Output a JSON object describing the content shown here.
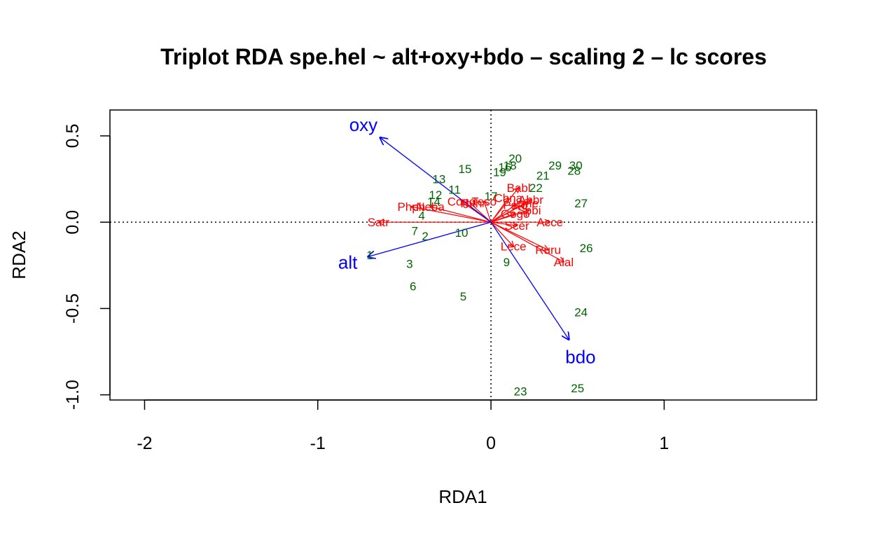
{
  "chart_data": {
    "type": "scatter",
    "title": "Triplot RDA spe.hel ~ alt+oxy+bdo – scaling 2 – lc scores",
    "xlabel": "RDA1",
    "ylabel": "RDA2",
    "xlim": [
      -2.2,
      1.88
    ],
    "ylim": [
      -1.03,
      0.65
    ],
    "xticks": [
      "-2",
      "-1",
      "0",
      "1"
    ],
    "xtick_values": [
      -2,
      -1,
      0,
      1
    ],
    "yticks": [
      "-1.0",
      "-0.5",
      "0.0",
      "0.5"
    ],
    "ytick_values": [
      -1.0,
      -0.5,
      0.0,
      0.5
    ],
    "reference_lines": {
      "x": 0,
      "y": 0,
      "style": "dotted"
    },
    "colors": {
      "sites": "#006400",
      "species": "#ff0000",
      "env": "#0000ff"
    },
    "sites": [
      {
        "label": "1",
        "x": -0.7,
        "y": -0.19
      },
      {
        "label": "2",
        "x": -0.38,
        "y": -0.08
      },
      {
        "label": "3",
        "x": -0.47,
        "y": -0.24
      },
      {
        "label": "4",
        "x": -0.4,
        "y": 0.04
      },
      {
        "label": "5",
        "x": -0.16,
        "y": -0.43
      },
      {
        "label": "6",
        "x": -0.45,
        "y": -0.37
      },
      {
        "label": "7",
        "x": -0.44,
        "y": -0.05
      },
      {
        "label": "9",
        "x": 0.09,
        "y": -0.23
      },
      {
        "label": "10",
        "x": -0.17,
        "y": -0.06
      },
      {
        "label": "11",
        "x": -0.21,
        "y": 0.19
      },
      {
        "label": "12",
        "x": -0.32,
        "y": 0.16
      },
      {
        "label": "13",
        "x": -0.3,
        "y": 0.25
      },
      {
        "label": "14",
        "x": -0.33,
        "y": 0.12
      },
      {
        "label": "15",
        "x": -0.15,
        "y": 0.31
      },
      {
        "label": "16",
        "x": 0.08,
        "y": 0.32
      },
      {
        "label": "17",
        "x": 0.0,
        "y": 0.15
      },
      {
        "label": "18",
        "x": 0.11,
        "y": 0.33
      },
      {
        "label": "19",
        "x": 0.05,
        "y": 0.29
      },
      {
        "label": "20",
        "x": 0.14,
        "y": 0.37
      },
      {
        "label": "21",
        "x": 0.3,
        "y": 0.27
      },
      {
        "label": "22",
        "x": 0.26,
        "y": 0.2
      },
      {
        "label": "23",
        "x": 0.17,
        "y": -0.98
      },
      {
        "label": "24",
        "x": 0.52,
        "y": -0.52
      },
      {
        "label": "25",
        "x": 0.5,
        "y": -0.96
      },
      {
        "label": "26",
        "x": 0.55,
        "y": -0.15
      },
      {
        "label": "27",
        "x": 0.52,
        "y": 0.11
      },
      {
        "label": "28",
        "x": 0.48,
        "y": 0.3
      },
      {
        "label": "29",
        "x": 0.37,
        "y": 0.33
      },
      {
        "label": "30",
        "x": 0.49,
        "y": 0.33
      }
    ],
    "species": [
      {
        "label": "Satr",
        "x": -0.65,
        "y": 0.0
      },
      {
        "label": "Phph",
        "x": -0.46,
        "y": 0.09
      },
      {
        "label": "Neba",
        "x": -0.35,
        "y": 0.09
      },
      {
        "label": "Thth",
        "x": -0.12,
        "y": 0.11
      },
      {
        "label": "Cogo",
        "x": -0.17,
        "y": 0.12
      },
      {
        "label": "Teso",
        "x": -0.04,
        "y": 0.12
      },
      {
        "label": "Babl",
        "x": 0.16,
        "y": 0.2
      },
      {
        "label": "Chna",
        "x": 0.1,
        "y": 0.14
      },
      {
        "label": "Pato",
        "x": 0.14,
        "y": 0.1
      },
      {
        "label": "Spbi",
        "x": 0.22,
        "y": 0.07
      },
      {
        "label": "Gogo",
        "x": 0.14,
        "y": 0.05
      },
      {
        "label": "Abbr",
        "x": 0.23,
        "y": 0.13
      },
      {
        "label": "Icme",
        "x": 0.2,
        "y": 0.11
      },
      {
        "label": "Acce",
        "x": 0.34,
        "y": 0.0
      },
      {
        "label": "Scer",
        "x": 0.15,
        "y": -0.02
      },
      {
        "label": "Lece",
        "x": 0.13,
        "y": -0.14
      },
      {
        "label": "Ruru",
        "x": 0.33,
        "y": -0.16
      },
      {
        "label": "Alal",
        "x": 0.42,
        "y": -0.23
      }
    ],
    "env_vectors": [
      {
        "label": "oxy",
        "x": -0.64,
        "y": 0.49
      },
      {
        "label": "alt",
        "x": -0.71,
        "y": -0.2
      },
      {
        "label": "bdo",
        "x": 0.45,
        "y": -0.68
      }
    ]
  }
}
